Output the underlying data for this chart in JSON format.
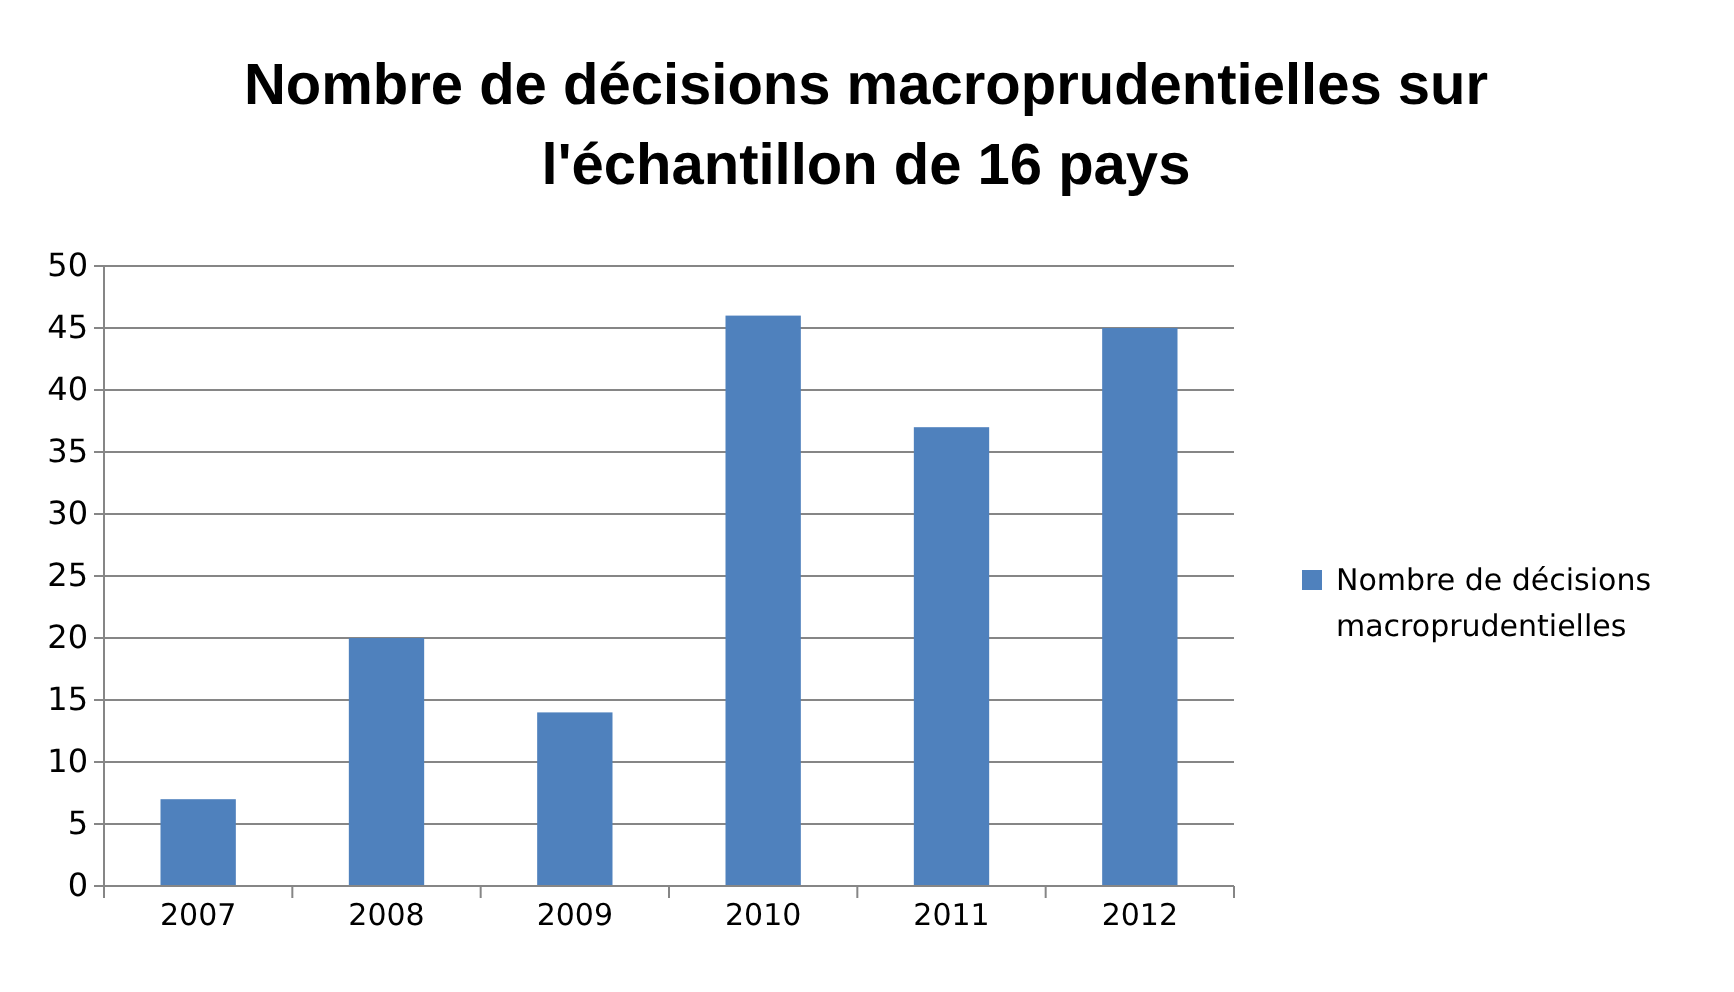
{
  "chart_data": {
    "type": "bar",
    "title": "Nombre de décisions macroprudentielles sur l'échantillon de 16 pays",
    "categories": [
      "2007",
      "2008",
      "2009",
      "2010",
      "2011",
      "2012"
    ],
    "series": [
      {
        "name": "Nombre de décisions macroprudentielles",
        "color": "#4f81bd",
        "values": [
          7,
          20,
          14,
          46,
          37,
          45
        ]
      }
    ],
    "ylim": [
      0,
      50
    ],
    "yticks": [
      0,
      5,
      10,
      15,
      20,
      25,
      30,
      35,
      40,
      45,
      50
    ],
    "grid": "y",
    "legend": "right"
  }
}
